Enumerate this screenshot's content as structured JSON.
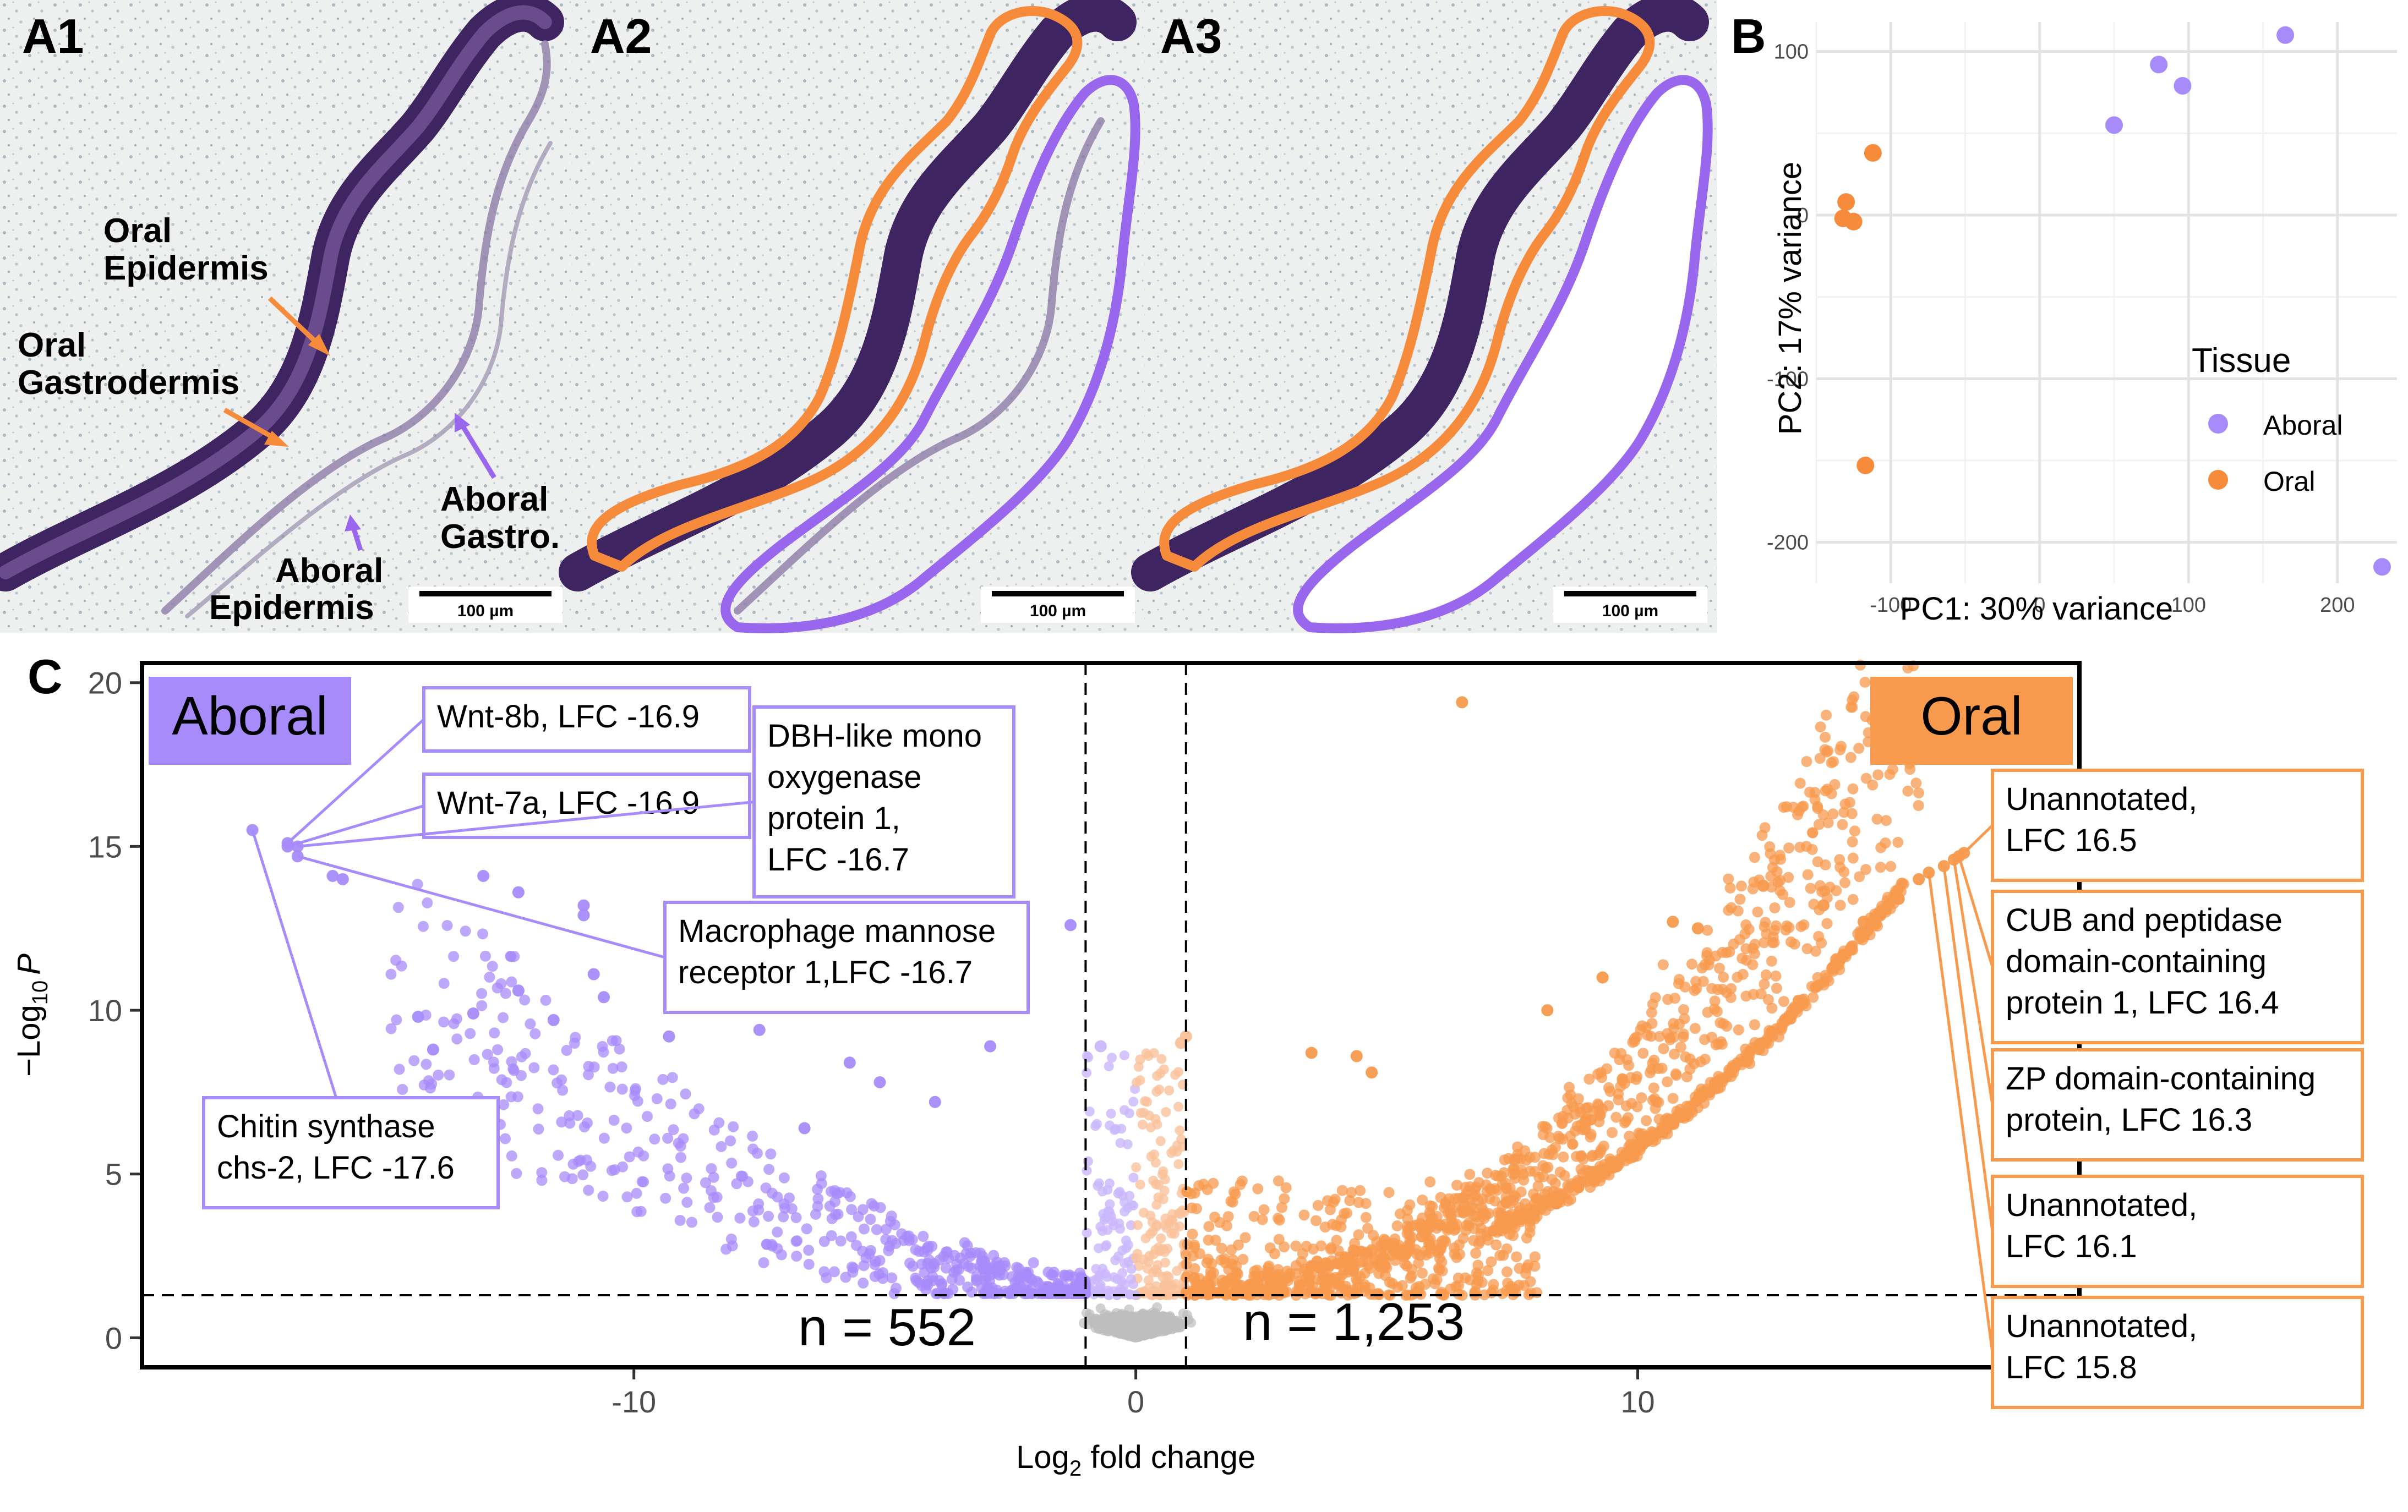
{
  "panels": {
    "a1": "A1",
    "a2": "A2",
    "a3": "A3",
    "b": "B",
    "c": "C"
  },
  "micrograph": {
    "labels": {
      "oral_epidermis_1": "Oral",
      "oral_epidermis_2": "Epidermis",
      "oral_gastrodermis_1": "Oral",
      "oral_gastrodermis_2": "Gastrodermis",
      "aboral_gastro_1": "Aboral",
      "aboral_gastro_2": "Gastro.",
      "aboral_epidermis_1": "Aboral",
      "aboral_epidermis_2": "Epidermis"
    },
    "scale_bar": "100 µm",
    "colors": {
      "oral": "#F68B3C",
      "aboral": "#9966EE",
      "tissue": "#4A2C6E",
      "background": "#EEF0EE"
    }
  },
  "chart_data": [
    {
      "type": "scatter",
      "panel": "B",
      "xlabel": "PC1: 30% variance",
      "ylabel": "PC2: 17% variance",
      "xlim": [
        -150,
        240
      ],
      "ylim": [
        -225,
        118
      ],
      "xticks": [
        -100,
        0,
        100,
        200
      ],
      "yticks": [
        -200,
        -100,
        0,
        100
      ],
      "grid": true,
      "legend": {
        "title": "Tissue",
        "position": "right"
      },
      "series": [
        {
          "name": "Aboral",
          "color": "#A78BFA",
          "points": [
            [
              50,
              55
            ],
            [
              80,
              92
            ],
            [
              96,
              79
            ],
            [
              165,
              110
            ],
            [
              230,
              -215
            ]
          ]
        },
        {
          "name": "Oral",
          "color": "#F68B3C",
          "points": [
            [
              -112,
              38
            ],
            [
              -130,
              8
            ],
            [
              -132,
              -2
            ],
            [
              -125,
              -4
            ],
            [
              -117,
              -153
            ]
          ]
        }
      ]
    },
    {
      "type": "scatter",
      "panel": "C",
      "xlabel": "Log",
      "xlabel_sub": "2",
      "xlabel_rest": " fold change",
      "ylabel": "−Log",
      "ylabel_sub": "10",
      "ylabel_rest": "P",
      "xlim": [
        -19.8,
        18.8
      ],
      "ylim": [
        -0.9,
        20.6
      ],
      "xticks": [
        -10,
        0,
        10
      ],
      "yticks": [
        0,
        5,
        10,
        15,
        20
      ],
      "thresholds": {
        "lfc": [
          -1,
          1
        ],
        "neglog10p": 1.3
      },
      "grid": false,
      "group_labels": {
        "left": "Aboral",
        "right": "Oral"
      },
      "counts": {
        "aboral": "n = 552",
        "oral": "n = 1,253"
      },
      "colors": {
        "aboral_sig": "#A78BFA",
        "aboral_weak": "#C9B8FB",
        "oral_sig": "#F79A4E",
        "oral_weak": "#F9C29A",
        "ns": "#BDBDBD"
      },
      "highlight_points": [
        [
          -17.6,
          15.5
        ],
        [
          -16.9,
          15.0
        ],
        [
          -16.9,
          15.1
        ],
        [
          -16.7,
          15.0
        ],
        [
          -16.7,
          14.7
        ],
        [
          -16.0,
          14.1
        ],
        [
          -15.8,
          14.0
        ],
        [
          -13.0,
          14.1
        ],
        [
          -12.3,
          13.6
        ],
        [
          -11.0,
          13.2
        ],
        [
          -11.0,
          12.9
        ],
        [
          -14.0,
          8.8
        ],
        [
          -14.3,
          9.8
        ],
        [
          -13.2,
          9.9
        ],
        [
          -12.3,
          10.6
        ],
        [
          -11.6,
          9.7
        ],
        [
          -10.6,
          10.4
        ],
        [
          -10.8,
          11.1
        ],
        [
          -8.6,
          10.2
        ],
        [
          -9.3,
          9.2
        ],
        [
          -7.5,
          9.4
        ],
        [
          -6.6,
          6.4
        ],
        [
          -5.7,
          8.4
        ],
        [
          -5.1,
          7.8
        ],
        [
          -4.0,
          7.2
        ],
        [
          -2.9,
          8.9
        ],
        [
          -1.3,
          12.6
        ],
        [
          -0.7,
          8.9
        ],
        [
          6.5,
          19.4
        ],
        [
          12.5,
          13.8
        ],
        [
          13.7,
          13.2
        ],
        [
          11.2,
          12.5
        ],
        [
          10.7,
          12.7
        ],
        [
          9.3,
          11.0
        ],
        [
          8.2,
          10.0
        ],
        [
          16.5,
          14.8
        ],
        [
          16.4,
          14.7
        ],
        [
          16.3,
          14.6
        ],
        [
          16.1,
          14.4
        ],
        [
          15.8,
          14.2
        ],
        [
          15.6,
          14.0
        ],
        [
          15.2,
          13.4
        ],
        [
          14.5,
          12.7
        ],
        [
          4.7,
          8.1
        ],
        [
          4.4,
          8.6
        ],
        [
          3.5,
          8.7
        ],
        [
          1.0,
          9.2
        ],
        [
          0.9,
          9.0
        ]
      ],
      "annotations": [
        {
          "side": "left",
          "lines": [
            "Wnt-8b, LFC -16.9"
          ],
          "x": -16.9,
          "y": 15.1
        },
        {
          "side": "left",
          "lines": [
            "Wnt-7a, LFC -16.9"
          ],
          "x": -16.9,
          "y": 15.0
        },
        {
          "side": "left",
          "lines": [
            "DBH-like mono",
            "oxygenase",
            "protein 1,",
            "LFC -16.7"
          ],
          "x": -16.7,
          "y": 15.0
        },
        {
          "side": "left",
          "lines": [
            "Macrophage mannose",
            "receptor 1,LFC -16.7"
          ],
          "x": -16.7,
          "y": 14.7
        },
        {
          "side": "left",
          "lines": [
            "Chitin synthase",
            "chs-2, LFC -17.6"
          ],
          "x": -17.6,
          "y": 15.5
        },
        {
          "side": "right",
          "lines": [
            "Unannotated,",
            "LFC 16.5"
          ],
          "x": 16.5,
          "y": 14.8
        },
        {
          "side": "right",
          "lines": [
            "CUB and peptidase",
            "domain-containing",
            "protein 1, LFC 16.4"
          ],
          "x": 16.4,
          "y": 14.7
        },
        {
          "side": "right",
          "lines": [
            "ZP domain-containing",
            "protein, LFC 16.3"
          ],
          "x": 16.3,
          "y": 14.6
        },
        {
          "side": "right",
          "lines": [
            "Unannotated,",
            "LFC 16.1"
          ],
          "x": 16.1,
          "y": 14.4
        },
        {
          "side": "right",
          "lines": [
            "Unannotated,",
            "LFC 15.8"
          ],
          "x": 15.8,
          "y": 14.2
        }
      ]
    }
  ]
}
